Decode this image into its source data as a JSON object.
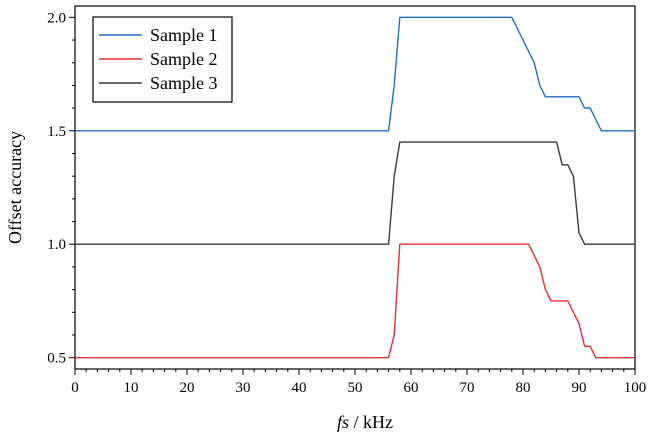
{
  "chart_data": {
    "type": "line",
    "xlabel_var": "fs",
    "xlabel_unit": " / kHz",
    "ylabel": "Offset accuracy",
    "xlim": [
      0,
      100
    ],
    "ylim": [
      0.45,
      2.05
    ],
    "xticks": [
      0,
      10,
      20,
      30,
      40,
      50,
      60,
      70,
      80,
      90,
      100
    ],
    "yticks": [
      0.5,
      1.0,
      1.5,
      2.0
    ],
    "ytick_labels": [
      "0.5",
      "1.0",
      "1.5",
      "2.0"
    ],
    "grid": false,
    "legend_position": "top-left",
    "series": [
      {
        "name": "Sample 1",
        "color": "#1f6fbf",
        "x": [
          0,
          56,
          57,
          58,
          78,
          80,
          82,
          83,
          84,
          90,
          91,
          92,
          94,
          100
        ],
        "y": [
          1.5,
          1.5,
          1.7,
          2.0,
          2.0,
          1.9,
          1.8,
          1.7,
          1.65,
          1.65,
          1.6,
          1.6,
          1.5,
          1.5
        ]
      },
      {
        "name": "Sample 2",
        "color": "#e03030",
        "x": [
          0,
          56,
          57,
          58,
          81,
          82,
          83,
          84,
          85,
          87,
          88,
          89,
          90,
          91,
          92,
          93,
          100
        ],
        "y": [
          0.5,
          0.5,
          0.6,
          1.0,
          1.0,
          0.95,
          0.9,
          0.8,
          0.75,
          0.75,
          0.75,
          0.7,
          0.65,
          0.55,
          0.55,
          0.5,
          0.5
        ]
      },
      {
        "name": "Sample 3",
        "color": "#3a3a3a",
        "x": [
          0,
          56,
          57,
          58,
          86,
          87,
          88,
          89,
          90,
          91,
          100
        ],
        "y": [
          1.0,
          1.0,
          1.3,
          1.45,
          1.45,
          1.35,
          1.35,
          1.3,
          1.05,
          1.0,
          1.0
        ]
      }
    ]
  }
}
